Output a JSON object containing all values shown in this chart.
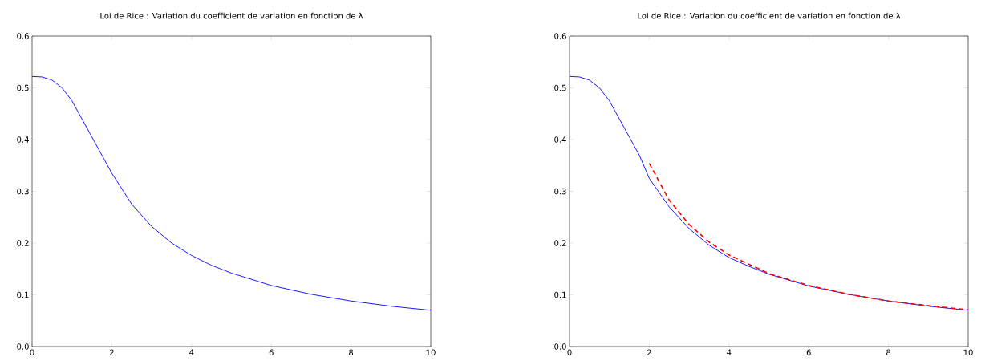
{
  "chart_data": [
    {
      "type": "line",
      "title": "Loi de Rice : Variation du coefficient de variation en fonction de λ",
      "xlim": [
        0,
        10
      ],
      "ylim": [
        0,
        0.6
      ],
      "xticks": [
        0,
        2,
        4,
        6,
        8,
        10
      ],
      "yticks": [
        {
          "value": 0,
          "label": "0.0"
        },
        {
          "value": 0.1,
          "label": "0.1"
        },
        {
          "value": 0.2,
          "label": "0.2"
        },
        {
          "value": 0.3,
          "label": "0.3"
        },
        {
          "value": 0.4,
          "label": "0.4"
        },
        {
          "value": 0.5,
          "label": "0.5"
        },
        {
          "value": 0.6,
          "label": "0.6"
        }
      ],
      "marker": "none",
      "series": [
        {
          "color": "#0000ff",
          "line_style": "solid",
          "x": [
            0,
            0.25,
            0.5,
            0.75,
            1,
            1.25,
            1.5,
            1.75,
            2,
            2.5,
            3,
            3.5,
            4,
            4.5,
            5,
            6,
            7,
            8,
            9,
            10
          ],
          "values": [
            0.522,
            0.521,
            0.515,
            0.5,
            0.475,
            0.44,
            0.405,
            0.37,
            0.335,
            0.275,
            0.232,
            0.2,
            0.176,
            0.157,
            0.142,
            0.118,
            0.101,
            0.088,
            0.078,
            0.07
          ]
        }
      ]
    },
    {
      "type": "line",
      "title": "Loi de Rice : Variation du coefficient de variation en fonction de λ",
      "xlim": [
        0,
        10
      ],
      "ylim": [
        0,
        0.6
      ],
      "xticks": [
        0,
        2,
        4,
        6,
        8,
        10
      ],
      "yticks": [
        {
          "value": 0,
          "label": "0.0"
        },
        {
          "value": 0.1,
          "label": "0.1"
        },
        {
          "value": 0.2,
          "label": "0.2"
        },
        {
          "value": 0.3,
          "label": "0.3"
        },
        {
          "value": 0.4,
          "label": "0.4"
        },
        {
          "value": 0.5,
          "label": "0.5"
        },
        {
          "value": 0.6,
          "label": "0.6"
        }
      ],
      "marker": "none",
      "series": [
        {
          "color": "#0000ff",
          "line_style": "solid",
          "x": [
            0,
            0.25,
            0.5,
            0.75,
            1,
            1.25,
            1.5,
            1.75,
            2,
            2.5,
            3,
            3.5,
            4,
            4.5,
            5,
            6,
            7,
            8,
            9,
            10
          ],
          "values": [
            0.522,
            0.521,
            0.515,
            0.5,
            0.475,
            0.44,
            0.405,
            0.37,
            0.325,
            0.27,
            0.228,
            0.196,
            0.172,
            0.155,
            0.14,
            0.117,
            0.101,
            0.088,
            0.078,
            0.07
          ]
        },
        {
          "color": "#ff0000",
          "line_style": "dashed",
          "x": [
            2,
            2.5,
            3,
            3.5,
            4,
            5,
            6,
            7,
            8,
            9,
            10
          ],
          "values": [
            0.354,
            0.283,
            0.236,
            0.202,
            0.177,
            0.141,
            0.118,
            0.101,
            0.088,
            0.079,
            0.071
          ]
        }
      ]
    }
  ]
}
